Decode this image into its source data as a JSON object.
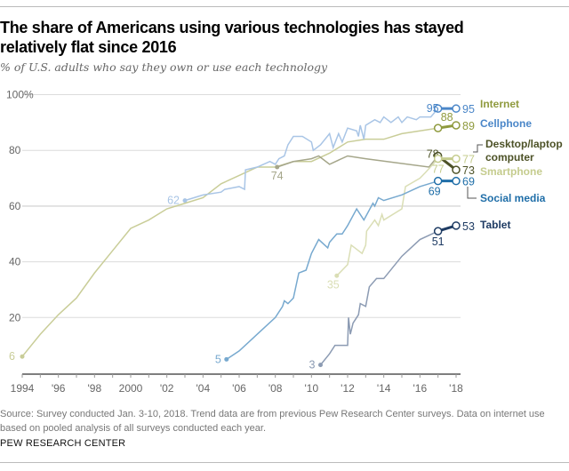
{
  "title": "The share of Americans using various technologies has stayed relatively flat since 2016",
  "subtitle": "% of U.S. adults who say they own or use each technology",
  "source": "Source: Survey conducted Jan. 3-10, 2018. Trend data are from previous Pew Research Center surveys. Data on internet use based on pooled analysis of all surveys conducted each year.",
  "brand": "PEW RESEARCH CENTER",
  "chart_data": {
    "type": "line",
    "xlim": [
      1994,
      2018
    ],
    "ylim": [
      0,
      100
    ],
    "grid": true,
    "y_ticks": [
      {
        "v": 20,
        "label": "20"
      },
      {
        "v": 40,
        "label": "40"
      },
      {
        "v": 60,
        "label": "60"
      },
      {
        "v": 80,
        "label": "80"
      },
      {
        "v": 100,
        "label": "100%"
      }
    ],
    "x_ticks": [
      {
        "v": 1994,
        "label": "1994"
      },
      {
        "v": 1996,
        "label": "'96"
      },
      {
        "v": 1998,
        "label": "'98"
      },
      {
        "v": 2000,
        "label": "2000"
      },
      {
        "v": 2002,
        "label": "'02"
      },
      {
        "v": 2004,
        "label": "'04"
      },
      {
        "v": 2006,
        "label": "'06"
      },
      {
        "v": 2008,
        "label": "'08"
      },
      {
        "v": 2010,
        "label": "'10"
      },
      {
        "v": 2012,
        "label": "'12"
      },
      {
        "v": 2014,
        "label": "'14"
      },
      {
        "v": 2016,
        "label": "'16"
      },
      {
        "v": 2018,
        "label": "'18"
      }
    ],
    "series": [
      {
        "name": "Internet",
        "color": "#c9cd98",
        "end_color": "#8f9a3e",
        "label_color": "#8f9a3e",
        "start_label": "6",
        "label_2017": "88",
        "label_2018": "89",
        "points": [
          [
            1994,
            6
          ],
          [
            1995,
            14
          ],
          [
            1996,
            21
          ],
          [
            1997,
            27
          ],
          [
            1998,
            36
          ],
          [
            1999,
            44
          ],
          [
            2000,
            52
          ],
          [
            2001,
            55
          ],
          [
            2002,
            59
          ],
          [
            2003,
            61
          ],
          [
            2004,
            63
          ],
          [
            2005,
            68
          ],
          [
            2006,
            71
          ],
          [
            2007,
            74
          ],
          [
            2008,
            74
          ],
          [
            2009,
            76
          ],
          [
            2010,
            76
          ],
          [
            2011,
            79
          ],
          [
            2012,
            83
          ],
          [
            2013,
            84
          ],
          [
            2014,
            84
          ],
          [
            2015,
            86
          ],
          [
            2016,
            87
          ],
          [
            2017,
            88
          ],
          [
            2018,
            89
          ]
        ]
      },
      {
        "name": "Cellphone",
        "color": "#a9c5e6",
        "end_color": "#4a86c8",
        "label_color": "#4a86c8",
        "start_label": "62",
        "label_2017": "95",
        "label_2018": "95",
        "points": [
          [
            2003,
            62
          ],
          [
            2004,
            64
          ],
          [
            2005,
            65
          ],
          [
            2005.2,
            66
          ],
          [
            2006,
            67
          ],
          [
            2006.3,
            66
          ],
          [
            2006.35,
            73
          ],
          [
            2007,
            74
          ],
          [
            2007.7,
            76
          ],
          [
            2008,
            75
          ],
          [
            2008.2,
            77
          ],
          [
            2008.5,
            78
          ],
          [
            2008.7,
            82
          ],
          [
            2009,
            85
          ],
          [
            2009.5,
            85
          ],
          [
            2010,
            83
          ],
          [
            2010.1,
            80
          ],
          [
            2010.5,
            82
          ],
          [
            2011,
            86
          ],
          [
            2011.2,
            81
          ],
          [
            2011.5,
            86
          ],
          [
            2011.7,
            83
          ],
          [
            2012,
            88
          ],
          [
            2012.5,
            87
          ],
          [
            2012.6,
            85
          ],
          [
            2012.7,
            89
          ],
          [
            2012.9,
            84
          ],
          [
            2013,
            89
          ],
          [
            2013.5,
            91
          ],
          [
            2013.8,
            90
          ],
          [
            2014,
            92
          ],
          [
            2014.4,
            90
          ],
          [
            2014.8,
            92
          ],
          [
            2015,
            90
          ],
          [
            2015.3,
            92
          ],
          [
            2015.8,
            91
          ],
          [
            2016,
            92
          ],
          [
            2016.6,
            92
          ],
          [
            2017,
            95
          ],
          [
            2018,
            95
          ]
        ]
      },
      {
        "name": "Desktop/laptop computer",
        "color": "#a5a68a",
        "end_color": "#4d5227",
        "label_color": "#4d5227",
        "start_label": "74",
        "label_2017": "78",
        "label_2018": "73",
        "points": [
          [
            2008.1,
            74
          ],
          [
            2009,
            76
          ],
          [
            2010,
            77
          ],
          [
            2010.4,
            78
          ],
          [
            2011,
            75
          ],
          [
            2012,
            78
          ],
          [
            2013,
            77
          ],
          [
            2016.5,
            74
          ],
          [
            2017,
            78
          ],
          [
            2018,
            73
          ]
        ]
      },
      {
        "name": "Smartphone",
        "color": "#dadeb5",
        "end_color": "#c5cc8e",
        "label_color": "#c5cc8e",
        "start_label": "35",
        "label_2017": "77",
        "label_2018": "77",
        "points": [
          [
            2011.4,
            35
          ],
          [
            2012,
            39
          ],
          [
            2012.2,
            46
          ],
          [
            2012.6,
            44
          ],
          [
            2012.8,
            43
          ],
          [
            2013,
            46
          ],
          [
            2013.05,
            51
          ],
          [
            2013.5,
            55
          ],
          [
            2013.7,
            53
          ],
          [
            2013.9,
            57
          ],
          [
            2014,
            55
          ],
          [
            2015,
            59
          ],
          [
            2015.2,
            67
          ],
          [
            2016,
            70
          ],
          [
            2016.3,
            72
          ],
          [
            2017,
            77
          ],
          [
            2018,
            77
          ]
        ]
      },
      {
        "name": "Social media",
        "color": "#77a9cf",
        "end_color": "#1f6ea8",
        "label_color": "#1f6ea8",
        "start_label": "5",
        "label_2017": "69",
        "label_2018": "69",
        "points": [
          [
            2005.3,
            5
          ],
          [
            2006,
            8
          ],
          [
            2007,
            14
          ],
          [
            2008,
            20
          ],
          [
            2008.4,
            24
          ],
          [
            2008.5,
            26
          ],
          [
            2008.7,
            25
          ],
          [
            2009,
            27
          ],
          [
            2009.3,
            36
          ],
          [
            2009.7,
            37
          ],
          [
            2010,
            43
          ],
          [
            2010.4,
            48
          ],
          [
            2010.9,
            45
          ],
          [
            2011,
            47
          ],
          [
            2011.4,
            50
          ],
          [
            2011.7,
            50
          ],
          [
            2012,
            53
          ],
          [
            2012.5,
            59
          ],
          [
            2012.9,
            55
          ],
          [
            2013.4,
            61
          ],
          [
            2013.5,
            60
          ],
          [
            2013.7,
            63
          ],
          [
            2014,
            62
          ],
          [
            2015,
            64
          ],
          [
            2016,
            67
          ],
          [
            2017,
            69
          ],
          [
            2018,
            69
          ]
        ]
      },
      {
        "name": "Tablet",
        "color": "#8c9bb3",
        "end_color": "#1e3b63",
        "label_color": "#1e3b63",
        "start_label": "3",
        "label_2017": "51",
        "label_2018": "53",
        "points": [
          [
            2010.5,
            3
          ],
          [
            2011,
            7
          ],
          [
            2011.3,
            10
          ],
          [
            2012,
            10
          ],
          [
            2012.05,
            20
          ],
          [
            2012.15,
            14
          ],
          [
            2012.3,
            18
          ],
          [
            2012.6,
            21
          ],
          [
            2012.7,
            25
          ],
          [
            2013,
            24
          ],
          [
            2013.2,
            31
          ],
          [
            2013.6,
            34
          ],
          [
            2014,
            34
          ],
          [
            2015,
            42
          ],
          [
            2015.5,
            45
          ],
          [
            2016,
            48
          ],
          [
            2017,
            51
          ],
          [
            2018,
            53
          ]
        ]
      }
    ]
  }
}
